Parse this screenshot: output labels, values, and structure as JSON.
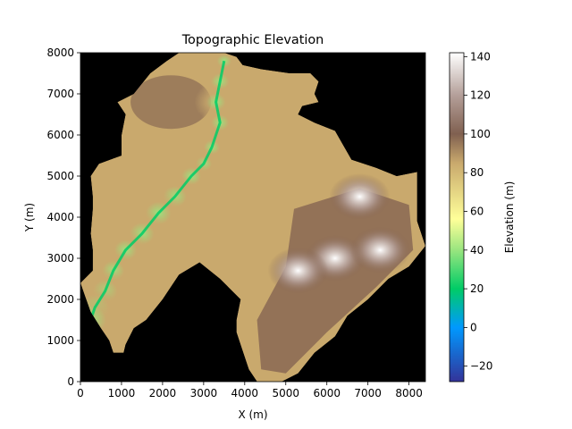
{
  "chart_data": {
    "type": "heatmap",
    "title": "Topographic Elevation",
    "xlabel": "X (m)",
    "ylabel": "Y (m)",
    "xlim": [
      0,
      8400
    ],
    "ylim": [
      0,
      8000
    ],
    "x_ticks": [
      0,
      1000,
      2000,
      3000,
      4000,
      5000,
      6000,
      7000,
      8000
    ],
    "y_ticks": [
      0,
      1000,
      2000,
      3000,
      4000,
      5000,
      6000,
      7000,
      8000
    ],
    "background": "#000000",
    "grid": false,
    "colormap": "terrain",
    "colorbar": {
      "label": "Elevation (m)",
      "range": [
        -28,
        142
      ],
      "ticks": [
        -20,
        0,
        20,
        40,
        60,
        80,
        100,
        120,
        140
      ],
      "stops": [
        {
          "value": -28,
          "color": "#333399"
        },
        {
          "value": 0,
          "color": "#0099ff"
        },
        {
          "value": 20,
          "color": "#00cc66"
        },
        {
          "value": 40,
          "color": "#99e57f"
        },
        {
          "value": 56,
          "color": "#ffff99"
        },
        {
          "value": 85,
          "color": "#c9a96d"
        },
        {
          "value": 100,
          "color": "#806050"
        },
        {
          "value": 120,
          "color": "#b49f99"
        },
        {
          "value": 142,
          "color": "#ffffff"
        }
      ]
    },
    "watershed": {
      "outline": [
        [
          1300,
          7000
        ],
        [
          1700,
          7500
        ],
        [
          2100,
          7800
        ],
        [
          2400,
          8000
        ],
        [
          3500,
          8000
        ],
        [
          3800,
          7900
        ],
        [
          3950,
          7700
        ],
        [
          4400,
          7600
        ],
        [
          5100,
          7500
        ],
        [
          5600,
          7500
        ],
        [
          5800,
          7300
        ],
        [
          5700,
          7000
        ],
        [
          5800,
          6800
        ],
        [
          5400,
          6700
        ],
        [
          5300,
          6500
        ],
        [
          5700,
          6300
        ],
        [
          6200,
          6100
        ],
        [
          6600,
          5400
        ],
        [
          7200,
          5200
        ],
        [
          7700,
          5000
        ],
        [
          8200,
          5100
        ],
        [
          8200,
          4500
        ],
        [
          8200,
          3900
        ],
        [
          8400,
          3300
        ],
        [
          8000,
          2800
        ],
        [
          7500,
          2500
        ],
        [
          7000,
          2000
        ],
        [
          6500,
          1600
        ],
        [
          6200,
          1100
        ],
        [
          5700,
          700
        ],
        [
          5300,
          200
        ],
        [
          4900,
          0
        ],
        [
          4300,
          0
        ],
        [
          4100,
          300
        ],
        [
          3900,
          900
        ],
        [
          3800,
          1200
        ],
        [
          3800,
          1500
        ],
        [
          3900,
          2000
        ],
        [
          3600,
          2300
        ],
        [
          3400,
          2500
        ],
        [
          2900,
          2900
        ],
        [
          2400,
          2600
        ],
        [
          2000,
          2000
        ],
        [
          1600,
          1500
        ],
        [
          1300,
          1300
        ],
        [
          1100,
          900
        ],
        [
          1050,
          700
        ],
        [
          800,
          700
        ],
        [
          700,
          1000
        ],
        [
          500,
          1300
        ],
        [
          250,
          1700
        ],
        [
          0,
          2400
        ],
        [
          300,
          2700
        ],
        [
          300,
          3200
        ],
        [
          250,
          3600
        ],
        [
          300,
          4200
        ],
        [
          300,
          4500
        ],
        [
          250,
          5000
        ],
        [
          450,
          5300
        ],
        [
          1000,
          5500
        ],
        [
          1000,
          6000
        ],
        [
          1100,
          6500
        ],
        [
          900,
          6800
        ]
      ],
      "main_channel": [
        [
          3500,
          7800
        ],
        [
          3400,
          7300
        ],
        [
          3300,
          6800
        ],
        [
          3400,
          6300
        ],
        [
          3200,
          5700
        ],
        [
          3000,
          5300
        ],
        [
          2700,
          5000
        ],
        [
          2300,
          4500
        ],
        [
          1900,
          4100
        ],
        [
          1500,
          3600
        ],
        [
          1100,
          3200
        ],
        [
          800,
          2700
        ],
        [
          600,
          2200
        ],
        [
          350,
          1800
        ],
        [
          250,
          1500
        ]
      ],
      "high_peaks": [
        [
          6800,
          4500
        ],
        [
          6200,
          3000
        ],
        [
          7300,
          3200
        ],
        [
          5300,
          2700
        ]
      ]
    }
  }
}
